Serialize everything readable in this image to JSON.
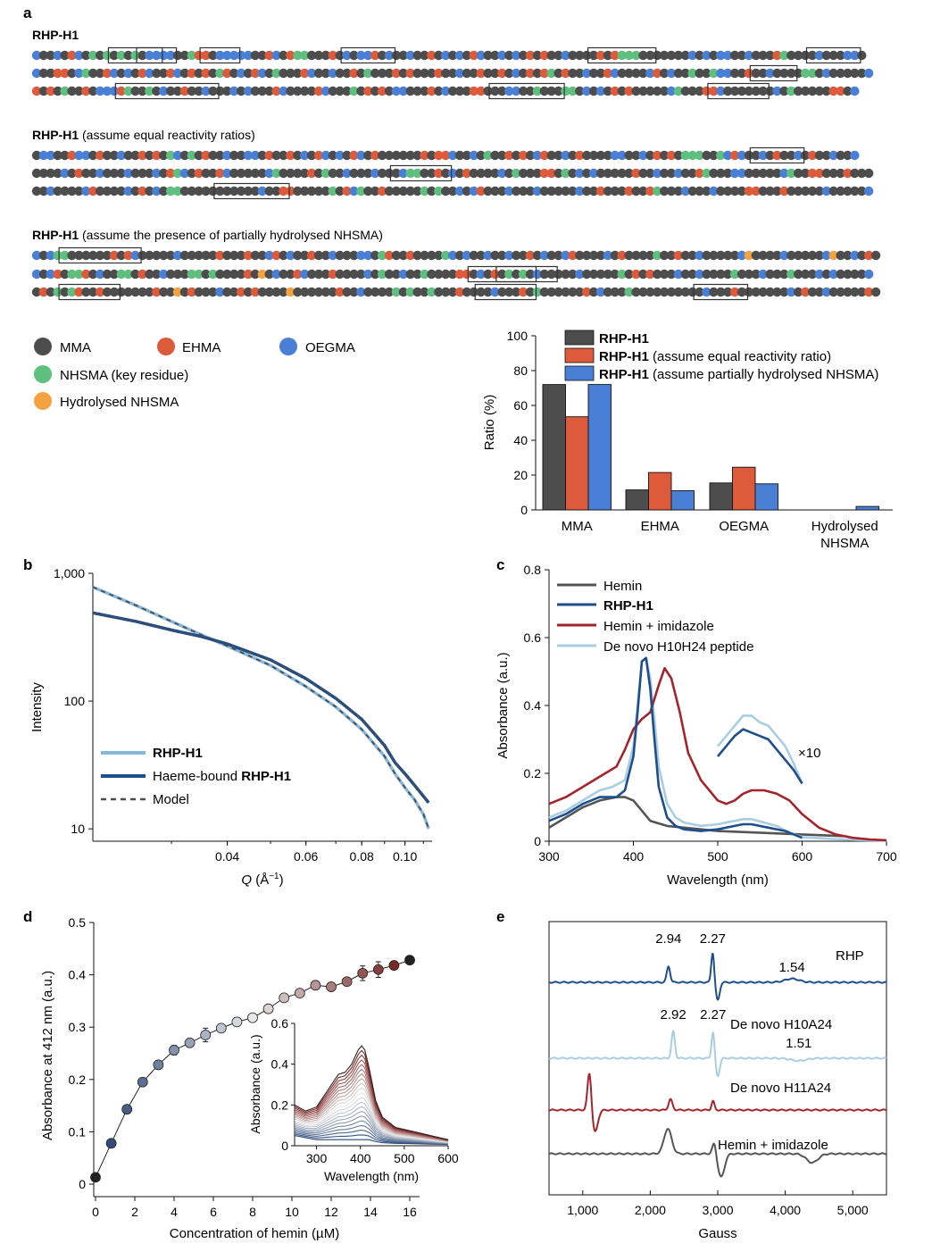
{
  "colors": {
    "MMA": "#4d4d4d",
    "EHMA": "#dd5a3a",
    "OEGMA": "#4a7fd6",
    "NHSMA": "#5fbf7f",
    "HNHSMA": "#f4a340",
    "series_dark": "#4d4d4d",
    "series_red": "#dd5a3a",
    "series_blue": "#4a7fd6",
    "rhp": "#1f4e8c",
    "light": "#86b8dc",
    "paleblue": "#a9cde2",
    "darkred": "#a3252b",
    "hemin": "#555555"
  },
  "panel_labels": [
    "a",
    "b",
    "c",
    "d",
    "e"
  ],
  "panel_a": {
    "groups": [
      {
        "bold": "RHP-H1",
        "rest": ""
      },
      {
        "bold": "RHP-H1",
        "rest": " (assume equal reactivity ratios)"
      },
      {
        "bold": "RHP-H1",
        "rest": " (assume the presence of partially hydrolysed NHSMA)"
      }
    ],
    "sequences": [
      "BMMOMEBMNMNMNMNMBBOBMMNEEMBBOBBMMEOMENNMMMEMOMBOEMBMMOMMEMOMOMEOMMOMOMEMEMMOMMMMEMENNNMMMMMMMOMOMOBMMOMMMENMMMMOMMMOOM",
      "OMMEEMBNMMEOMOMEBMMEOMEMEMNEMOMEBMNMMMEOMMOMMEMNMMMEMEMMMEMMOMMEMMEMOMEMENMEMMOMMEBMMMMOEMOMMNMMNOOMMEMMOMMMMNNMBMMMMMO",
      "EMEMNMMEMOOOENMMNMOMMEMMOMMMBMOMMMEOMMMMEOMMMNMEMEMOOMMMEMOMMMEEMMMOOMMNMMMNNMOMOMEMEMMMMMBNMMMEEOMMMMMMMOMNMMMMMEEMO",
      "MOBMMEOOMEMMBMMEMEMNOMNMEMMOMMOOMEMMEMOMEOMOMEOMEMMMMMMEMEEOMMOMNMMEMEMOEMMOMEMMMMOOMMBMEMEMNNNMMNOEOMMOMEMMOMEMMOMMO",
      "MMMMOMEMMOMMMOMMMOMENOMEMMEOMMMMMONMMMMEMNMMOMMMOMMMONNMMEMOMEMMMMOMNMMMEEMNMOMOMMMMMEMMOMMOMMENMMMOOMMMMMONMMEEMMMEMMM",
      "MMOMMMMOEMMMMOMEMOMNNMMMMMMMMMMMOMMEEMMMMMNMEONMMEMMMMMNMNMMOMOEMMMOMMMOMMMMMOMMEMMMEMMENMMMOMMMOMMMMEEMMMEMMMMMOMMMMMO",
      "OMONNMMMMMMEMEOMMMMMOMMMMMEMMMEMMOEMOMMEMMOMMMOOMNEMMEMMMMNOMOMMOMMOMMEMOMMOEMMMMOMEMMMMNMMEMMOMMMMMOHMMMMOMMMMMOHMMOMEM",
      "OMOEMNNEMOMMNNMEMMOMMMNNMNMMMMEMHMOMMEOMMMEMMMMOMNMMOMMNMMMMEEMOMEMNMNMOMMMMMOMMMMMNMEMEMMMOMMOMMMMNMMMOMMMNMMMOMOMMMMO",
      "MEMNMNEMMEMMMMMMMEMMHMEMMMOMMEMEMMMMHMMMMMMEMMOMMMMNMNMMNMMMEMMMMOMMMEMNMMMMMMEMOMMMNMMMMMMMMMMOMMMEMMMMMMMOMEMMOMMMMMEM"
    ],
    "legend": [
      {
        "key": "MMA",
        "label": "MMA"
      },
      {
        "key": "EHMA",
        "label": "EHMA"
      },
      {
        "key": "OEGMA",
        "label": "OEGMA"
      },
      {
        "key": "NHSMA",
        "label": "NHSMA (key residue)"
      },
      {
        "key": "HNHSMA",
        "label": "Hydrolysed NHSMA"
      }
    ]
  },
  "chart_data": [
    {
      "id": "a-bar",
      "type": "bar",
      "categories": [
        "MMA",
        "EHMA",
        "OEGMA",
        "Hydrolysed"
      ],
      "category_second_line": [
        "",
        "",
        "",
        "NHSMA"
      ],
      "series": [
        {
          "name": "RHP-H1",
          "name_rest": "",
          "color_key": "series_dark",
          "values": [
            72,
            11.5,
            15.5,
            0
          ]
        },
        {
          "name": "RHP-H1",
          "name_rest": " (assume equal reactivity ratio)",
          "color_key": "series_red",
          "values": [
            53.5,
            21.5,
            24.5,
            0
          ]
        },
        {
          "name": "RHP-H1",
          "name_rest": " (assume partially hydrolysed NHSMA)",
          "color_key": "series_blue",
          "values": [
            72,
            11,
            15,
            2
          ]
        }
      ],
      "ylabel": "Ratio (%)",
      "ylim": [
        0,
        100
      ],
      "yticks": [
        "0",
        "20",
        "40",
        "60",
        "80",
        "100"
      ]
    },
    {
      "id": "b-saxs",
      "type": "line",
      "xscale": "log",
      "yscale": "log",
      "xlim": [
        0.02,
        0.115
      ],
      "ylim": [
        8,
        1000
      ],
      "xticks": [
        {
          "v": 0.04,
          "t": "0.04"
        },
        {
          "v": 0.06,
          "t": "0.06"
        },
        {
          "v": 0.08,
          "t": "0.08"
        },
        {
          "v": 0.1,
          "t": "0.10"
        }
      ],
      "yticks": [
        {
          "v": 10,
          "t": "10"
        },
        {
          "v": 100,
          "t": "100"
        },
        {
          "v": 1000,
          "t": "1,000"
        }
      ],
      "xlabel_italic": "Q",
      "xlabel_rest": " (Å",
      "xlabel_sup": "−1",
      "xlabel_end": ")",
      "ylabel": "Intensity",
      "legend": [
        {
          "bold": "RHP-H1",
          "pre": "",
          "color_key": "light",
          "dash": false
        },
        {
          "bold": "RHP-H1",
          "pre": "Haeme-bound ",
          "color_key": "rhp",
          "dash": false
        },
        {
          "bold": "",
          "pre": "Model",
          "color_key": "series_dark",
          "dash": true
        }
      ],
      "series": [
        {
          "name": "RHP-H1",
          "color_key": "light",
          "x": [
            0.02,
            0.025,
            0.03,
            0.035,
            0.04,
            0.05,
            0.06,
            0.07,
            0.08,
            0.09,
            0.095,
            0.1,
            0.105,
            0.11,
            0.113
          ],
          "y": [
            780,
            560,
            420,
            330,
            270,
            190,
            130,
            90,
            60,
            37,
            27,
            21,
            17,
            13,
            10
          ]
        },
        {
          "name": "Haeme-bound RHP-H1",
          "color_key": "rhp",
          "x": [
            0.02,
            0.025,
            0.03,
            0.035,
            0.04,
            0.05,
            0.06,
            0.07,
            0.08,
            0.09,
            0.095,
            0.1,
            0.105,
            0.11,
            0.113
          ],
          "y": [
            490,
            420,
            360,
            320,
            280,
            210,
            150,
            105,
            72,
            45,
            33,
            27,
            22,
            18,
            16
          ]
        }
      ]
    },
    {
      "id": "c-uvvis",
      "type": "line",
      "xlim": [
        300,
        700
      ],
      "ylim": [
        0,
        0.8
      ],
      "xticks": [
        "300",
        "400",
        "500",
        "600",
        "700"
      ],
      "yticks": [
        "0",
        "0.2",
        "0.4",
        "0.6",
        "0.8"
      ],
      "xlabel": "Wavelength (nm)",
      "ylabel": "Absorbance (a.u.)",
      "annotation": "×10",
      "legend": [
        {
          "label": "Hemin",
          "bold": false,
          "color_key": "hemin"
        },
        {
          "label": "RHP-H1",
          "bold": true,
          "color_key": "rhp"
        },
        {
          "label": "Hemin + imidazole",
          "bold": false,
          "color_key": "darkred"
        },
        {
          "label": "De novo H10H24 peptide",
          "bold": false,
          "color_key": "paleblue"
        }
      ],
      "series": [
        {
          "name": "Hemin",
          "color_key": "hemin",
          "x": [
            300,
            320,
            340,
            360,
            380,
            390,
            400,
            410,
            420,
            440,
            460,
            500,
            600,
            650
          ],
          "y": [
            0.04,
            0.07,
            0.1,
            0.12,
            0.13,
            0.13,
            0.12,
            0.09,
            0.06,
            0.045,
            0.04,
            0.03,
            0.02,
            0.015
          ]
        },
        {
          "name": "RHP-H1",
          "color_key": "rhp",
          "x": [
            300,
            320,
            340,
            360,
            380,
            390,
            400,
            405,
            410,
            415,
            420,
            425,
            430,
            440,
            450,
            460,
            480,
            500,
            520,
            530,
            540,
            560,
            580,
            600
          ],
          "y": [
            0.06,
            0.08,
            0.11,
            0.13,
            0.13,
            0.15,
            0.25,
            0.38,
            0.53,
            0.54,
            0.45,
            0.3,
            0.16,
            0.07,
            0.045,
            0.035,
            0.03,
            0.035,
            0.045,
            0.05,
            0.05,
            0.04,
            0.03,
            0.01
          ]
        },
        {
          "name": "Hemin + imidazole",
          "color_key": "darkred",
          "x": [
            300,
            320,
            340,
            360,
            380,
            390,
            400,
            410,
            420,
            430,
            437,
            445,
            455,
            465,
            480,
            500,
            510,
            520,
            530,
            540,
            555,
            570,
            585,
            600,
            620,
            640,
            660,
            680,
            700
          ],
          "y": [
            0.11,
            0.13,
            0.16,
            0.19,
            0.22,
            0.27,
            0.33,
            0.36,
            0.38,
            0.46,
            0.51,
            0.48,
            0.38,
            0.26,
            0.18,
            0.12,
            0.11,
            0.12,
            0.14,
            0.15,
            0.15,
            0.14,
            0.12,
            0.08,
            0.04,
            0.02,
            0.01,
            0.005,
            0.003
          ]
        },
        {
          "name": "De novo H10H24 peptide",
          "color_key": "paleblue",
          "x": [
            300,
            320,
            340,
            360,
            375,
            390,
            400,
            405,
            410,
            415,
            420,
            425,
            430,
            440,
            450,
            460,
            480,
            500,
            520,
            530,
            540,
            555,
            570,
            585,
            600,
            640,
            680,
            700
          ],
          "y": [
            0.07,
            0.09,
            0.12,
            0.15,
            0.16,
            0.18,
            0.28,
            0.4,
            0.53,
            0.54,
            0.48,
            0.36,
            0.22,
            0.11,
            0.07,
            0.055,
            0.045,
            0.05,
            0.06,
            0.065,
            0.065,
            0.055,
            0.045,
            0.025,
            0.012,
            0.006,
            0.003,
            0.002
          ]
        },
        {
          "name": "RHP-H1 ×10",
          "color_key": "rhp",
          "x": [
            500,
            510,
            520,
            530,
            540,
            550,
            560,
            570,
            580,
            590,
            600
          ],
          "y": [
            0.25,
            0.28,
            0.31,
            0.33,
            0.32,
            0.31,
            0.3,
            0.27,
            0.24,
            0.21,
            0.17
          ]
        },
        {
          "name": "De novo H10H24 ×10",
          "color_key": "paleblue",
          "x": [
            500,
            510,
            520,
            530,
            540,
            550,
            560,
            570,
            580,
            590,
            600
          ],
          "y": [
            0.28,
            0.31,
            0.34,
            0.37,
            0.37,
            0.35,
            0.34,
            0.31,
            0.28,
            0.23,
            0.17
          ]
        }
      ]
    },
    {
      "id": "d-titration",
      "type": "scatter",
      "xlim": [
        0,
        16.5
      ],
      "ylim": [
        0,
        0.5
      ],
      "xticks": [
        "0",
        "2",
        "4",
        "6",
        "8",
        "10",
        "12",
        "14",
        "16"
      ],
      "yticks": [
        "0",
        "0.1",
        "0.2",
        "0.3",
        "0.4",
        "0.5"
      ],
      "xlabel": "Concentration of hemin (µM)",
      "ylabel": "Absorbance at 412 nm (a.u.)",
      "x": [
        0,
        0.8,
        1.6,
        2.4,
        3.2,
        4.0,
        4.8,
        5.6,
        6.4,
        7.2,
        8.0,
        8.8,
        9.6,
        10.4,
        11.2,
        12.0,
        12.8,
        13.6,
        14.4,
        15.2,
        16.0
      ],
      "y": [
        0.013,
        0.078,
        0.143,
        0.195,
        0.228,
        0.256,
        0.27,
        0.285,
        0.298,
        0.31,
        0.318,
        0.335,
        0.356,
        0.365,
        0.38,
        0.377,
        0.387,
        0.403,
        0.41,
        0.418,
        0.428
      ],
      "err": [
        0.005,
        0.006,
        0.006,
        0.006,
        0.007,
        0.009,
        0.007,
        0.013,
        0.007,
        0.008,
        0.007,
        0.007,
        0.008,
        0.007,
        0.007,
        0.006,
        0.007,
        0.014,
        0.015,
        0.008,
        0.006
      ],
      "inset": {
        "xlim": [
          250,
          600
        ],
        "ylim": [
          0,
          0.6
        ],
        "xticks": [
          "300",
          "400",
          "500",
          "600"
        ],
        "yticks": [
          "0",
          "0.2",
          "0.4",
          "0.6"
        ],
        "xlabel": "Wavelength (nm)",
        "ylabel": "Absorbance (a.u.)",
        "x": [
          250,
          275,
          300,
          325,
          350,
          365,
          380,
          395,
          403,
          410,
          420,
          435,
          450,
          480,
          520,
          560,
          600
        ],
        "base": [
          0.05,
          0.04,
          0.03,
          0.03,
          0.03,
          0.03,
          0.03,
          0.03,
          0.03,
          0.03,
          0.03,
          0.02,
          0.015,
          0.012,
          0.01,
          0.008,
          0.006
        ],
        "top": [
          0.2,
          0.17,
          0.19,
          0.27,
          0.35,
          0.36,
          0.4,
          0.47,
          0.49,
          0.47,
          0.38,
          0.22,
          0.14,
          0.09,
          0.07,
          0.05,
          0.03
        ],
        "n_curves": 21
      }
    },
    {
      "id": "e-epr",
      "type": "line",
      "xlim": [
        500,
        5500
      ],
      "xticks": [
        {
          "v": 1000,
          "t": "1,000"
        },
        {
          "v": 2000,
          "t": "2,000"
        },
        {
          "v": 3000,
          "t": "3,000"
        },
        {
          "v": 4000,
          "t": "4,000"
        },
        {
          "v": 5000,
          "t": "5,000"
        }
      ],
      "xlabel": "Gauss",
      "traces": [
        {
          "name": "RHP",
          "color_key": "rhp",
          "offset": 1100,
          "peaks": [
            {
              "g": 2270,
              "a": -18,
              "w": 35
            },
            {
              "g": 2925,
              "a": -34,
              "w": 30
            },
            {
              "g": 3000,
              "a": 20,
              "w": 40
            },
            {
              "g": 4100,
              "a": -4,
              "w": 150
            }
          ],
          "labels": [
            {
              "g": 2270,
              "t": "2.94"
            },
            {
              "g": 2925,
              "t": "2.27"
            },
            {
              "g": 4100,
              "t": "1.54"
            }
          ]
        },
        {
          "name": "De novo H10A24",
          "color_key": "paleblue",
          "offset": 1185,
          "peaks": [
            {
              "g": 2340,
              "a": -30,
              "w": 35
            },
            {
              "g": 2930,
              "a": -30,
              "w": 30
            },
            {
              "g": 3000,
              "a": 20,
              "w": 40
            },
            {
              "g": 4200,
              "a": 3,
              "w": 150
            }
          ],
          "labels": [
            {
              "g": 2340,
              "t": "2.92"
            },
            {
              "g": 2930,
              "t": "2.27"
            },
            {
              "g": 4200,
              "t": "1.51"
            }
          ]
        },
        {
          "name": "De novo H11A24",
          "color_key": "darkred",
          "offset": 1243,
          "peaks": [
            {
              "g": 1100,
              "a": -45,
              "w": 40
            },
            {
              "g": 1180,
              "a": 25,
              "w": 60
            },
            {
              "g": 2300,
              "a": -12,
              "w": 40
            },
            {
              "g": 2930,
              "a": -10,
              "w": 30
            }
          ],
          "labels": []
        },
        {
          "name": "Hemin + imidazole",
          "color_key": "hemin",
          "offset": 1292,
          "peaks": [
            {
              "g": 2260,
              "a": -28,
              "w": 80
            },
            {
              "g": 2950,
              "a": -14,
              "w": 40
            },
            {
              "g": 3050,
              "a": 26,
              "w": 70
            },
            {
              "g": 4400,
              "a": 10,
              "w": 120
            }
          ],
          "labels": []
        }
      ]
    }
  ]
}
